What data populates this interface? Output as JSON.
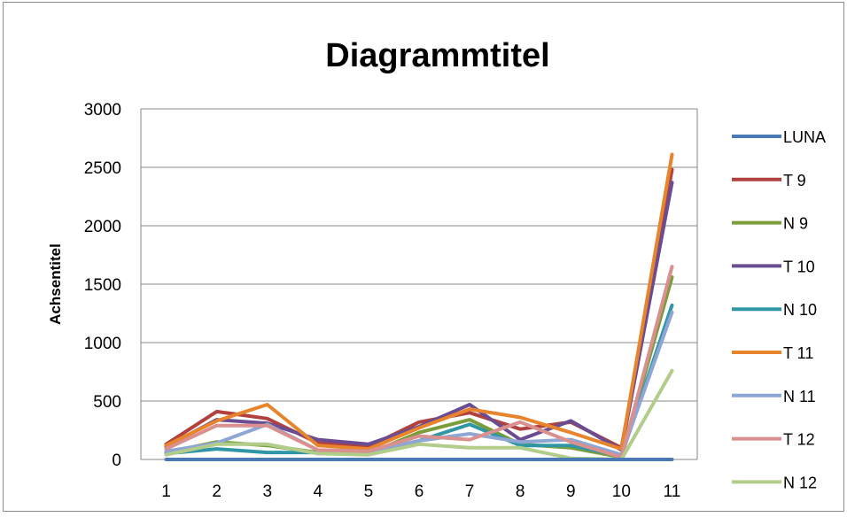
{
  "chart_data": {
    "type": "line",
    "title": "Diagrammtitel",
    "xlabel": "",
    "ylabel": "Achsentitel",
    "ylim": [
      0,
      3000
    ],
    "yticks": [
      "0",
      "500",
      "1000",
      "1500",
      "2000",
      "2500",
      "3000"
    ],
    "categories": [
      "1",
      "2",
      "3",
      "4",
      "5",
      "6",
      "7",
      "8",
      "9",
      "10",
      "11"
    ],
    "grid": true,
    "legend_position": "right",
    "series": [
      {
        "name": "LUNA",
        "color": "#4a7ab5",
        "values": [
          0,
          0,
          0,
          0,
          0,
          0,
          0,
          0,
          0,
          0,
          0
        ]
      },
      {
        "name": "T 9",
        "color": "#b0413e",
        "values": [
          130,
          410,
          350,
          140,
          110,
          320,
          400,
          260,
          320,
          100,
          2480
        ]
      },
      {
        "name": "N 9",
        "color": "#7a9c3a",
        "values": [
          60,
          150,
          120,
          60,
          50,
          230,
          340,
          130,
          100,
          20,
          1560
        ]
      },
      {
        "name": "T 10",
        "color": "#6a4c93",
        "values": [
          110,
          340,
          310,
          170,
          130,
          280,
          470,
          170,
          330,
          80,
          2370
        ]
      },
      {
        "name": "N 10",
        "color": "#2f96a5",
        "values": [
          50,
          90,
          60,
          60,
          60,
          160,
          300,
          120,
          120,
          30,
          1320
        ]
      },
      {
        "name": "T 11",
        "color": "#e8842c",
        "values": [
          120,
          330,
          470,
          120,
          90,
          270,
          430,
          360,
          230,
          90,
          2610
        ]
      },
      {
        "name": "N 11",
        "color": "#8ea6d3",
        "values": [
          70,
          140,
          300,
          80,
          70,
          160,
          220,
          150,
          170,
          40,
          1260
        ]
      },
      {
        "name": "T 12",
        "color": "#d9908e",
        "values": [
          90,
          290,
          290,
          80,
          70,
          200,
          170,
          320,
          150,
          20,
          1650
        ]
      },
      {
        "name": "N 12",
        "color": "#b2cc8a",
        "values": [
          40,
          130,
          130,
          50,
          40,
          130,
          100,
          100,
          10,
          0,
          760
        ]
      }
    ]
  }
}
